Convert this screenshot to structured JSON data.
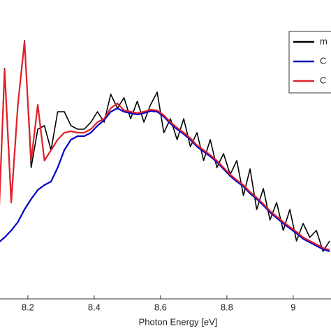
{
  "chart_data": {
    "type": "line",
    "xlabel": "Photon Energy [eV]",
    "x": [
      8.11,
      8.13,
      8.15,
      8.17,
      8.19,
      8.21,
      8.23,
      8.25,
      8.27,
      8.29,
      8.31,
      8.33,
      8.35,
      8.37,
      8.39,
      8.41,
      8.43,
      8.45,
      8.47,
      8.49,
      8.51,
      8.53,
      8.55,
      8.57,
      8.59,
      8.61,
      8.63,
      8.65,
      8.67,
      8.69,
      8.71,
      8.73,
      8.75,
      8.77,
      8.79,
      8.81,
      8.83,
      8.85,
      8.87,
      8.89,
      8.91,
      8.93,
      8.95,
      8.97,
      8.99,
      9.01,
      9.03,
      9.05,
      9.07,
      9.09,
      9.11
    ],
    "series": [
      {
        "name": "m",
        "color": "#000000",
        "values": [
          93,
          330,
          143,
          278,
          370,
          188,
          243,
          248,
          213,
          268,
          268,
          248,
          243,
          243,
          253,
          268,
          253,
          293,
          273,
          288,
          258,
          283,
          253,
          278,
          296,
          238,
          258,
          228,
          258,
          218,
          238,
          198,
          228,
          188,
          208,
          178,
          198,
          148,
          186,
          128,
          158,
          113,
          138,
          98,
          128,
          83,
          108,
          88,
          98,
          68,
          83
        ]
      },
      {
        "name": "C",
        "color": "#0000c8",
        "values": [
          80,
          88,
          98,
          110,
          128,
          143,
          156,
          163,
          168,
          188,
          213,
          228,
          233,
          233,
          238,
          248,
          256,
          268,
          273,
          268,
          266,
          264,
          266,
          269,
          268,
          261,
          251,
          243,
          236,
          228,
          218,
          211,
          204,
          196,
          186,
          176,
          168,
          161,
          151,
          143,
          134,
          124,
          116,
          108,
          101,
          94,
          86,
          81,
          76,
          71,
          68
        ]
      },
      {
        "name": "C",
        "color": "#e0202a",
        "values": [
          88,
          328,
          138,
          278,
          368,
          198,
          278,
          198,
          213,
          228,
          238,
          240,
          238,
          238,
          243,
          253,
          258,
          273,
          280,
          270,
          268,
          266,
          268,
          271,
          270,
          263,
          253,
          245,
          238,
          230,
          220,
          213,
          206,
          198,
          188,
          178,
          170,
          163,
          153,
          145,
          136,
          126,
          118,
          110,
          103,
          96,
          88,
          83,
          78,
          73,
          70
        ]
      }
    ],
    "xlim": [
      8.116,
      9.114
    ],
    "ylim": [
      0,
      400
    ],
    "xticks": [
      8.2,
      8.4,
      8.6,
      8.8,
      9
    ]
  }
}
